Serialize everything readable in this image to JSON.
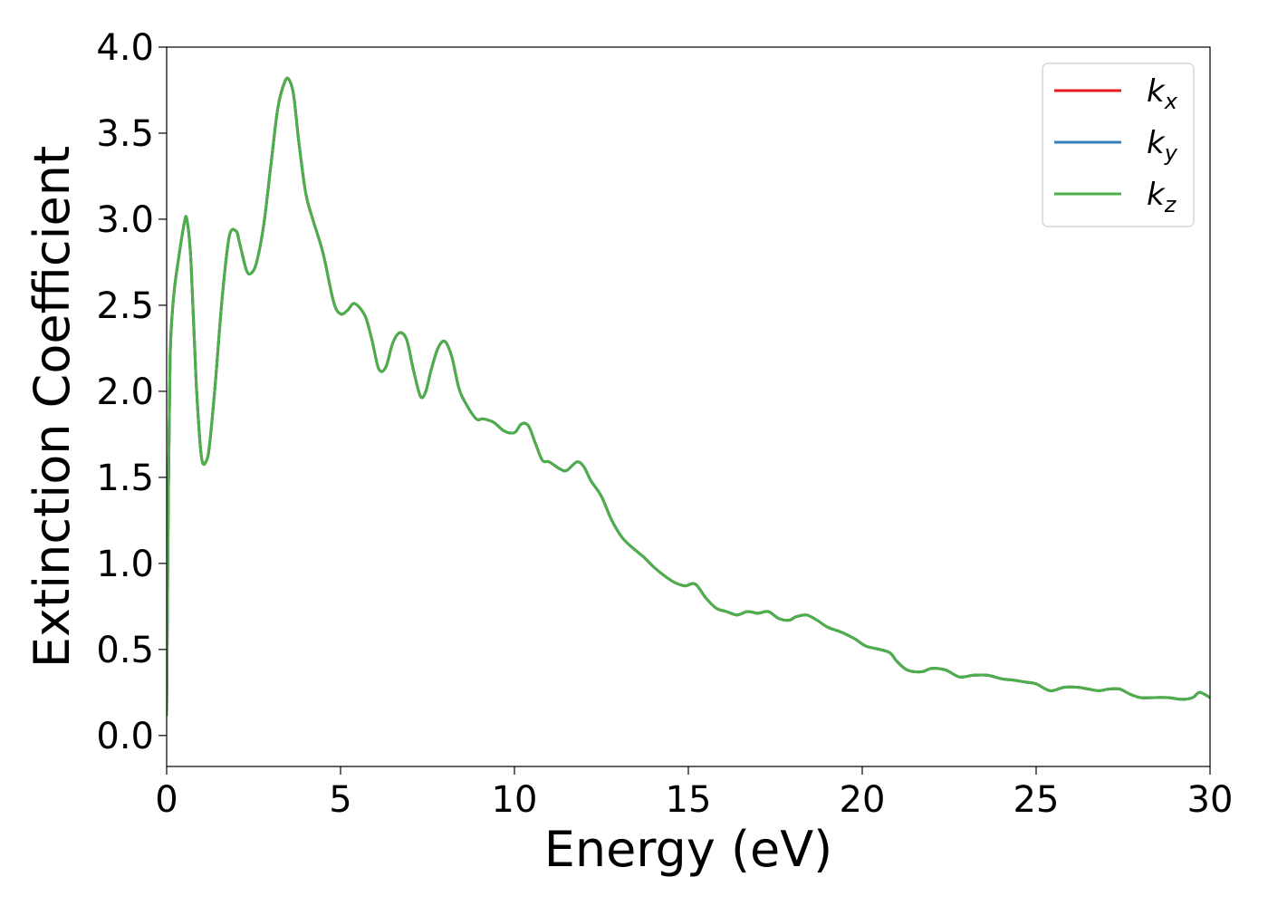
{
  "chart_data": {
    "type": "line",
    "xlabel": "Energy (eV)",
    "ylabel": "Extinction Coefficient",
    "xlim": [
      0,
      30
    ],
    "ylim": [
      -0.18,
      4.0
    ],
    "xticks": [
      0,
      5,
      10,
      15,
      20,
      25,
      30
    ],
    "xtick_labels": [
      "0",
      "5",
      "10",
      "15",
      "20",
      "25",
      "30"
    ],
    "yticks": [
      0.0,
      0.5,
      1.0,
      1.5,
      2.0,
      2.5,
      3.0,
      3.5,
      4.0
    ],
    "ytick_labels": [
      "0.0",
      "0.5",
      "1.0",
      "1.5",
      "2.0",
      "2.5",
      "3.0",
      "3.5",
      "4.0"
    ],
    "grid": false,
    "legend_position": "top-right",
    "x": [
      0,
      0.05,
      0.1,
      0.2,
      0.35,
      0.5,
      0.58,
      0.7,
      0.85,
      1.0,
      1.15,
      1.25,
      1.4,
      1.6,
      1.8,
      2.0,
      2.1,
      2.3,
      2.45,
      2.6,
      2.8,
      3.0,
      3.2,
      3.4,
      3.52,
      3.65,
      3.8,
      4.0,
      4.2,
      4.5,
      4.8,
      5.0,
      5.2,
      5.4,
      5.7,
      5.9,
      6.1,
      6.3,
      6.5,
      6.7,
      6.9,
      7.1,
      7.3,
      7.45,
      7.6,
      7.8,
      8.0,
      8.2,
      8.4,
      8.6,
      8.9,
      9.1,
      9.4,
      9.7,
      10.0,
      10.2,
      10.4,
      10.6,
      10.8,
      11.0,
      11.3,
      11.5,
      11.8,
      12.0,
      12.2,
      12.5,
      12.8,
      13.1,
      13.4,
      13.7,
      14.0,
      14.3,
      14.6,
      14.9,
      15.2,
      15.5,
      15.8,
      16.1,
      16.4,
      16.7,
      17.0,
      17.3,
      17.6,
      17.9,
      18.1,
      18.4,
      18.7,
      19.0,
      19.4,
      19.8,
      20.1,
      20.5,
      20.8,
      21.0,
      21.3,
      21.7,
      22.0,
      22.4,
      22.8,
      23.2,
      23.6,
      24.0,
      24.4,
      24.7,
      25.0,
      25.4,
      25.8,
      26.2,
      26.5,
      26.8,
      27.1,
      27.4,
      27.7,
      28.0,
      28.4,
      28.8,
      29.2,
      29.5,
      29.7,
      30.0
    ],
    "series": [
      {
        "name": "k_x",
        "label_main": "k",
        "label_sub": "x",
        "color": "#e41a1c",
        "values": [
          0.12,
          1.4,
          2.2,
          2.55,
          2.78,
          2.97,
          3.0,
          2.75,
          2.05,
          1.62,
          1.6,
          1.72,
          2.05,
          2.55,
          2.9,
          2.93,
          2.86,
          2.7,
          2.69,
          2.76,
          2.98,
          3.32,
          3.65,
          3.8,
          3.81,
          3.72,
          3.45,
          3.15,
          3.0,
          2.8,
          2.52,
          2.45,
          2.47,
          2.51,
          2.44,
          2.3,
          2.13,
          2.14,
          2.28,
          2.34,
          2.3,
          2.12,
          1.97,
          2.0,
          2.12,
          2.25,
          2.29,
          2.2,
          2.02,
          1.93,
          1.84,
          1.84,
          1.82,
          1.77,
          1.76,
          1.81,
          1.8,
          1.7,
          1.6,
          1.59,
          1.55,
          1.54,
          1.59,
          1.56,
          1.48,
          1.39,
          1.25,
          1.15,
          1.09,
          1.04,
          0.98,
          0.93,
          0.89,
          0.87,
          0.88,
          0.8,
          0.74,
          0.72,
          0.7,
          0.72,
          0.71,
          0.72,
          0.68,
          0.67,
          0.69,
          0.7,
          0.67,
          0.63,
          0.6,
          0.56,
          0.52,
          0.5,
          0.48,
          0.43,
          0.38,
          0.37,
          0.39,
          0.38,
          0.34,
          0.35,
          0.35,
          0.33,
          0.32,
          0.31,
          0.3,
          0.26,
          0.28,
          0.28,
          0.27,
          0.26,
          0.27,
          0.27,
          0.24,
          0.22,
          0.22,
          0.22,
          0.21,
          0.22,
          0.25,
          0.22
        ]
      },
      {
        "name": "k_y",
        "label_main": "k",
        "label_sub": "y",
        "color": "#377eb8",
        "values": [
          0.12,
          1.4,
          2.2,
          2.55,
          2.78,
          2.97,
          3.0,
          2.75,
          2.05,
          1.62,
          1.6,
          1.72,
          2.05,
          2.55,
          2.9,
          2.93,
          2.86,
          2.7,
          2.69,
          2.76,
          2.98,
          3.32,
          3.65,
          3.8,
          3.81,
          3.72,
          3.45,
          3.15,
          3.0,
          2.8,
          2.52,
          2.45,
          2.47,
          2.51,
          2.44,
          2.3,
          2.13,
          2.14,
          2.28,
          2.34,
          2.3,
          2.12,
          1.97,
          2.0,
          2.12,
          2.25,
          2.29,
          2.2,
          2.02,
          1.93,
          1.84,
          1.84,
          1.82,
          1.77,
          1.76,
          1.81,
          1.8,
          1.7,
          1.6,
          1.59,
          1.55,
          1.54,
          1.59,
          1.56,
          1.48,
          1.39,
          1.25,
          1.15,
          1.09,
          1.04,
          0.98,
          0.93,
          0.89,
          0.87,
          0.88,
          0.8,
          0.74,
          0.72,
          0.7,
          0.72,
          0.71,
          0.72,
          0.68,
          0.67,
          0.69,
          0.7,
          0.67,
          0.63,
          0.6,
          0.56,
          0.52,
          0.5,
          0.48,
          0.43,
          0.38,
          0.37,
          0.39,
          0.38,
          0.34,
          0.35,
          0.35,
          0.33,
          0.32,
          0.31,
          0.3,
          0.26,
          0.28,
          0.28,
          0.27,
          0.26,
          0.27,
          0.27,
          0.24,
          0.22,
          0.22,
          0.22,
          0.21,
          0.22,
          0.25,
          0.22
        ]
      },
      {
        "name": "k_z",
        "label_main": "k",
        "label_sub": "z",
        "color": "#4daf4a",
        "values": [
          0.12,
          1.4,
          2.2,
          2.55,
          2.78,
          2.97,
          3.0,
          2.75,
          2.05,
          1.62,
          1.6,
          1.72,
          2.05,
          2.55,
          2.9,
          2.93,
          2.86,
          2.7,
          2.69,
          2.76,
          2.98,
          3.32,
          3.65,
          3.8,
          3.81,
          3.72,
          3.45,
          3.15,
          3.0,
          2.8,
          2.52,
          2.45,
          2.47,
          2.51,
          2.44,
          2.3,
          2.13,
          2.14,
          2.28,
          2.34,
          2.3,
          2.12,
          1.97,
          2.0,
          2.12,
          2.25,
          2.29,
          2.2,
          2.02,
          1.93,
          1.84,
          1.84,
          1.82,
          1.77,
          1.76,
          1.81,
          1.8,
          1.7,
          1.6,
          1.59,
          1.55,
          1.54,
          1.59,
          1.56,
          1.48,
          1.39,
          1.25,
          1.15,
          1.09,
          1.04,
          0.98,
          0.93,
          0.89,
          0.87,
          0.88,
          0.8,
          0.74,
          0.72,
          0.7,
          0.72,
          0.71,
          0.72,
          0.68,
          0.67,
          0.69,
          0.7,
          0.67,
          0.63,
          0.6,
          0.56,
          0.52,
          0.5,
          0.48,
          0.43,
          0.38,
          0.37,
          0.39,
          0.38,
          0.34,
          0.35,
          0.35,
          0.33,
          0.32,
          0.31,
          0.3,
          0.26,
          0.28,
          0.28,
          0.27,
          0.26,
          0.27,
          0.27,
          0.24,
          0.22,
          0.22,
          0.22,
          0.21,
          0.22,
          0.25,
          0.22
        ]
      }
    ]
  }
}
